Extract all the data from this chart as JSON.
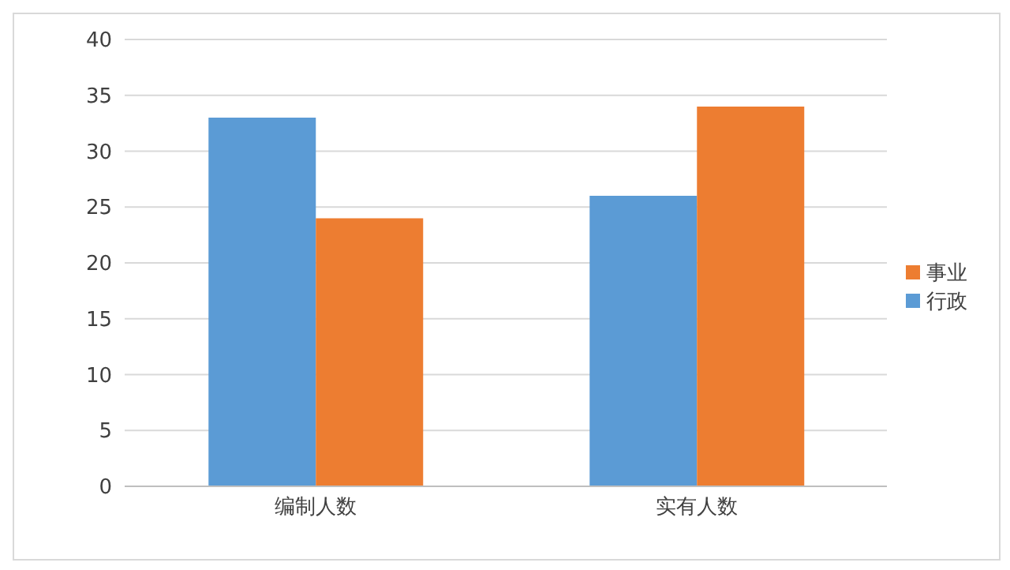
{
  "chart_data": {
    "type": "bar",
    "categories": [
      "编制人数",
      "实有人数"
    ],
    "series": [
      {
        "name": "行政",
        "color": "#5b9bd5",
        "values": [
          33,
          26
        ]
      },
      {
        "name": "事业",
        "color": "#ed7d31",
        "values": [
          24,
          34
        ]
      }
    ],
    "ylim": [
      0,
      40
    ],
    "yticks": [
      0,
      5,
      10,
      15,
      20,
      25,
      30,
      35,
      40
    ],
    "grid": "y",
    "legend": "right"
  }
}
